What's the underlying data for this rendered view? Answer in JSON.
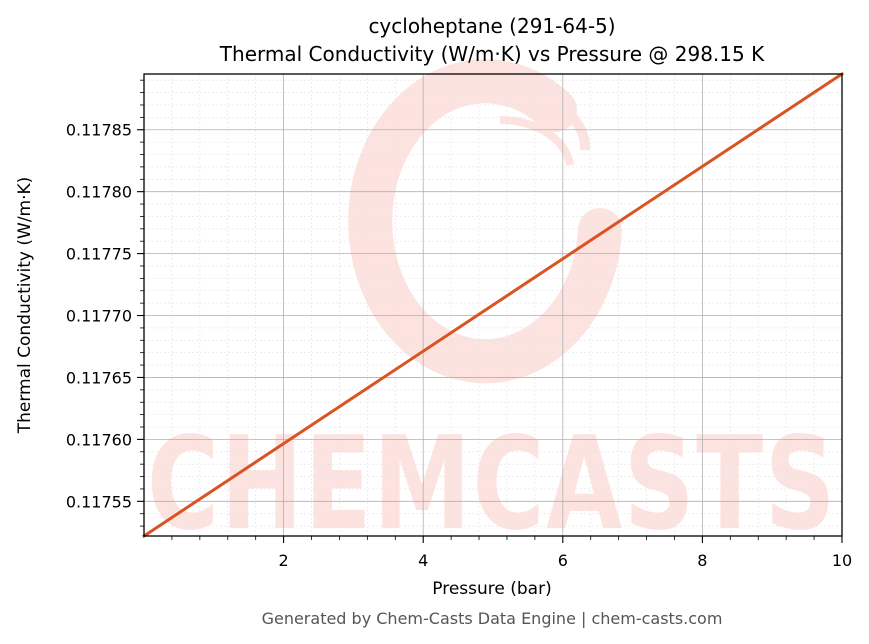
{
  "chart_data": {
    "type": "line",
    "title": "cycloheptane (291-64-5)",
    "subtitle": "Thermal Conductivity (W/m·K) vs Pressure @ 298.15 K",
    "xlabel": "Pressure (bar)",
    "ylabel": "Thermal Conductivity (W/m·K)",
    "xlim": [
      0.0,
      10.0
    ],
    "ylim": [
      0.117522,
      0.117895
    ],
    "x_ticks": [
      2,
      4,
      6,
      8,
      10
    ],
    "x_tick_labels": [
      "2",
      "4",
      "6",
      "8",
      "10"
    ],
    "y_ticks": [
      0.11755,
      0.1176,
      0.11765,
      0.1177,
      0.11775,
      0.1178,
      0.11785
    ],
    "y_tick_labels": [
      "0.11755",
      "0.11760",
      "0.11765",
      "0.11770",
      "0.11775",
      "0.11780",
      "0.11785"
    ],
    "grid": true,
    "series": [
      {
        "color": "#d95422",
        "x": [
          0.0,
          10.0
        ],
        "y": [
          0.117522,
          0.117895
        ]
      }
    ]
  },
  "watermark": {
    "text": "CHEMCASTS",
    "color": "#fde3e0"
  },
  "footer": "Generated by Chem-Casts Data Engine | chem-casts.com"
}
